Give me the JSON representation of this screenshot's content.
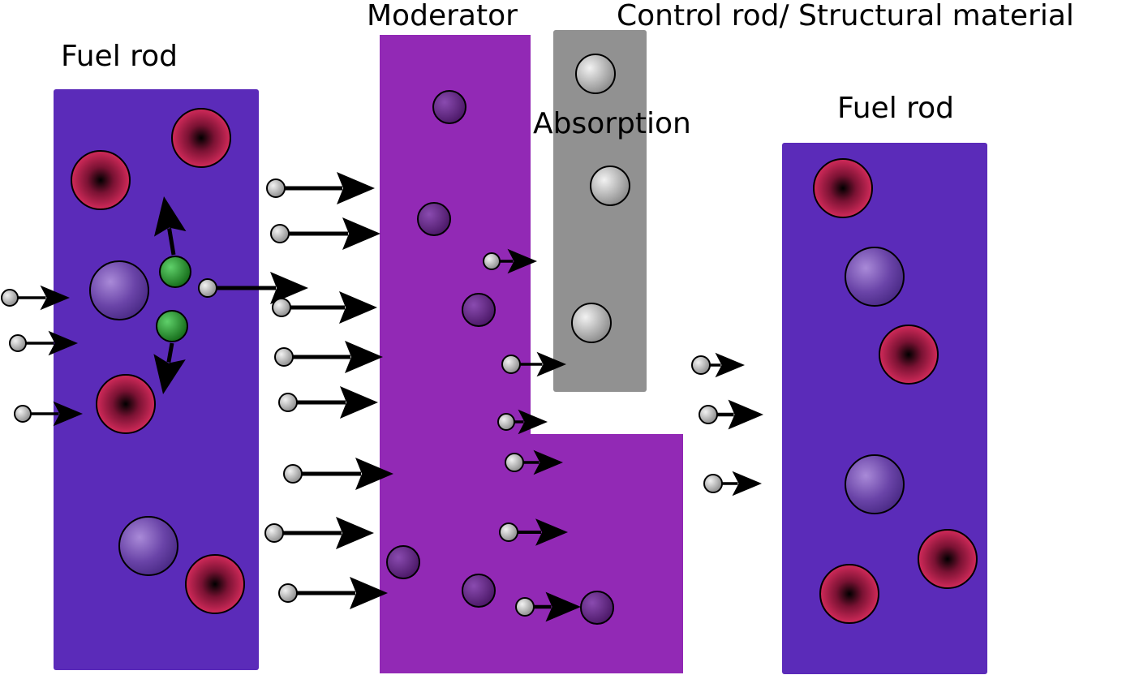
{
  "labels": {
    "fuel_rod_left": "Fuel rod",
    "moderator": "Moderator",
    "control_rod": "Control rod/ Structural material",
    "absorption": "Absorption",
    "fuel_rod_right": "Fuel rod"
  },
  "colors": {
    "fuel_rod": "#5b2bb9",
    "moderator": "#9229b5",
    "control_rod": "#919191",
    "fissile_atom": "#c0214f",
    "fertile_atom": "#7a4db0",
    "moderator_atom": "#5a1f7a",
    "neutron": "#a8a8a8",
    "fission_fragment": "#1f8a24",
    "arrow": "#000000"
  },
  "icons": [
    "fissile-atom-icon",
    "fertile-atom-icon",
    "neutron-icon",
    "fission-fragment-icon",
    "arrow-icon"
  ]
}
